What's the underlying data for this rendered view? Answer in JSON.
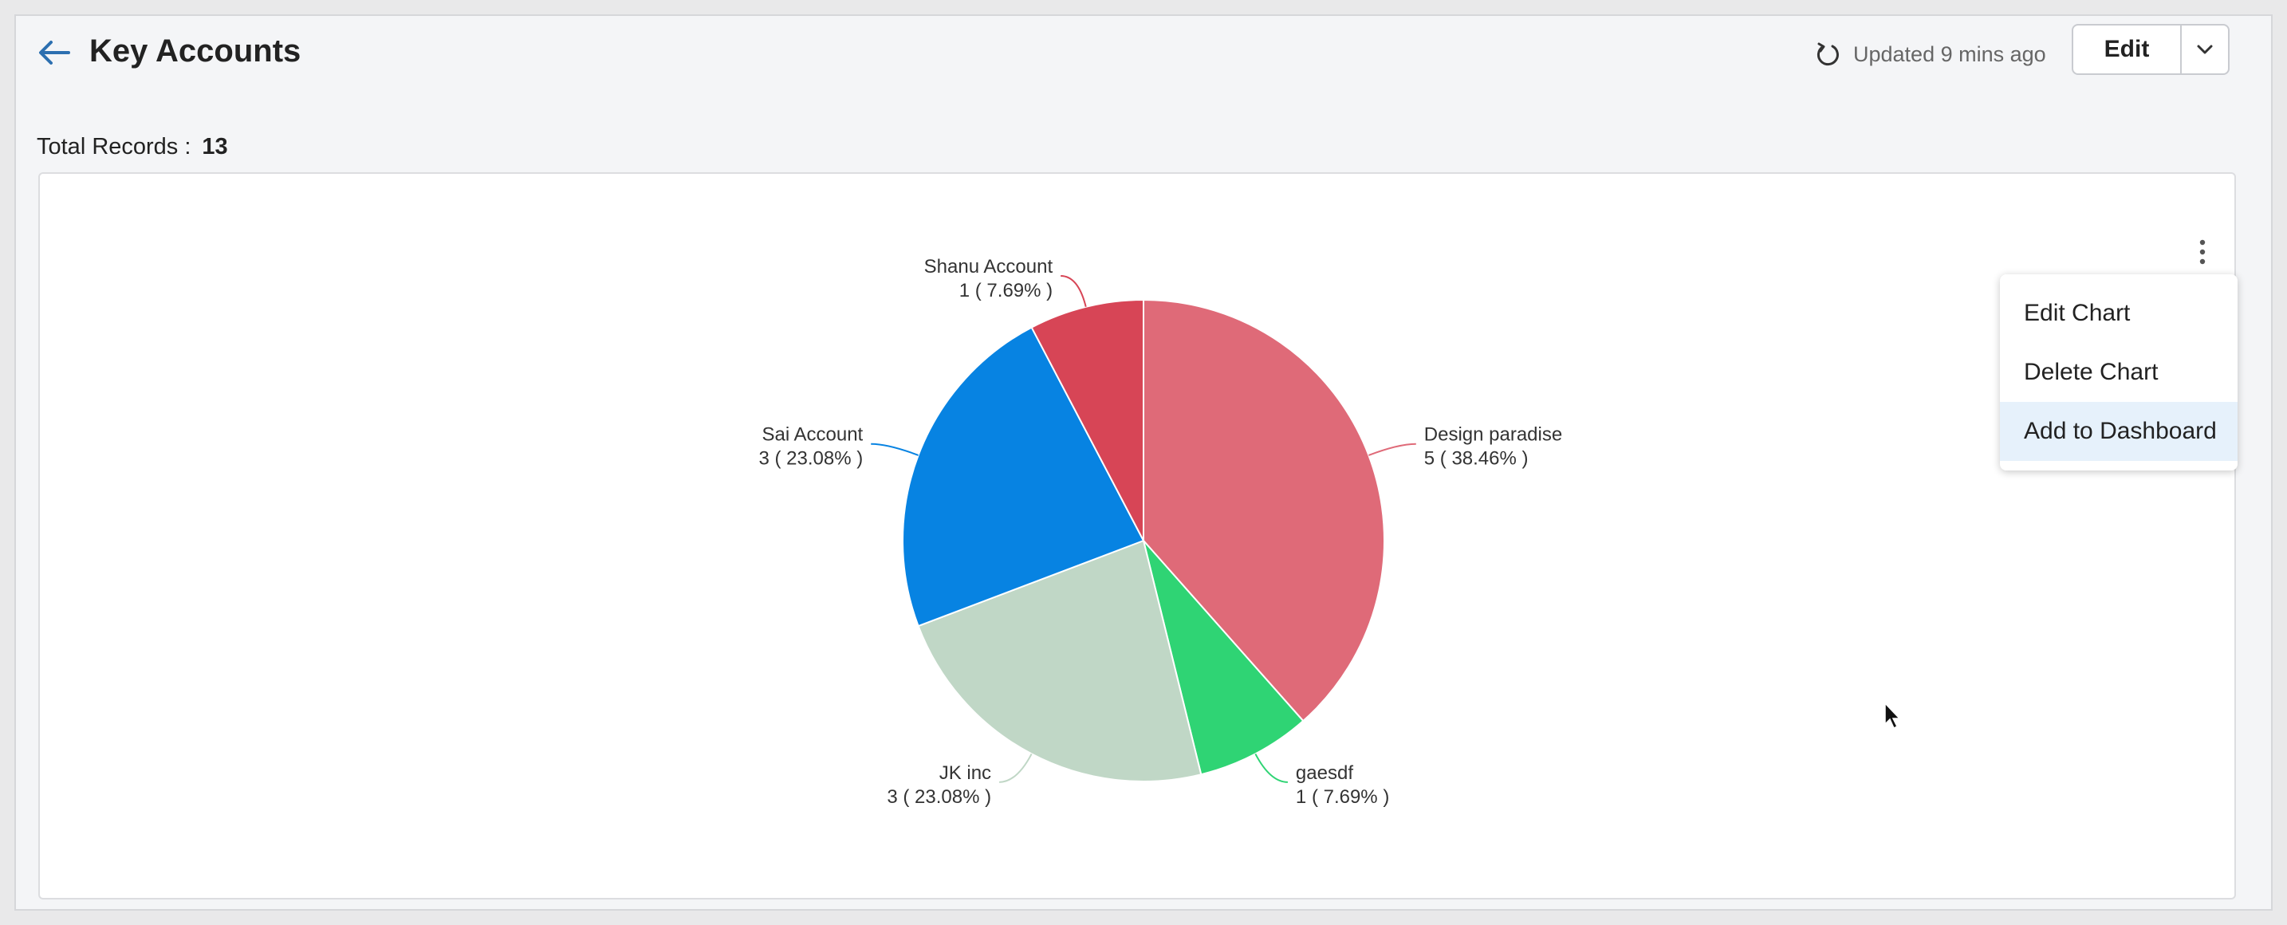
{
  "header": {
    "title": "Key Accounts",
    "updated": "Updated 9 mins ago",
    "edit_label": "Edit"
  },
  "summary": {
    "total_label": "Total Records :",
    "total_value": "13"
  },
  "menu": {
    "items": [
      "Edit Chart",
      "Delete Chart",
      "Add to Dashboard"
    ]
  },
  "chart_data": {
    "type": "pie",
    "categories": [
      "Design paradise",
      "gaesdf",
      "JK inc",
      "Sai Account",
      "Shanu Account"
    ],
    "values": [
      5,
      1,
      3,
      3,
      1
    ],
    "value_labels": [
      "5 ( 38.46% )",
      "1 ( 7.69% )",
      "3 ( 23.08% )",
      "3 ( 23.08% )",
      "1 ( 7.69% )"
    ],
    "colors": [
      "#df6a78",
      "#2fd474",
      "#c0d7c6",
      "#0783e2",
      "#d74556"
    ]
  }
}
